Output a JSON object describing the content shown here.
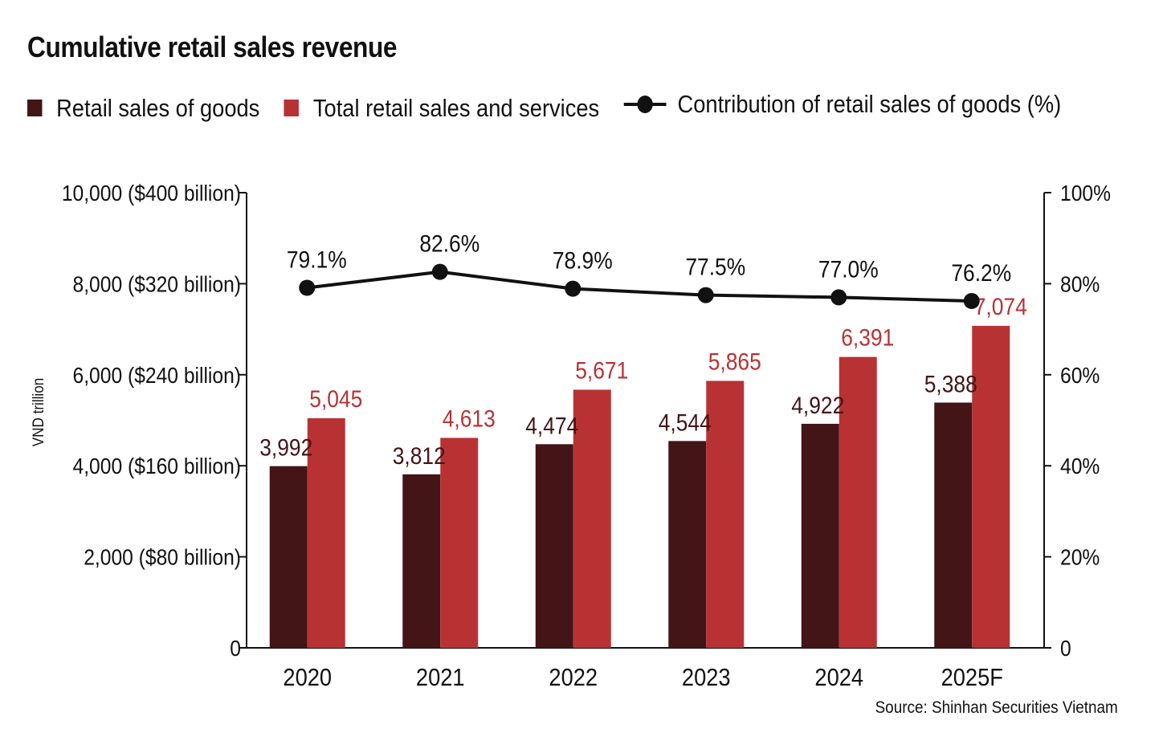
{
  "title": "Cumulative retail sales revenue",
  "source": "Source: Shinhan Securities Vietnam",
  "colors": {
    "goods": "#431516",
    "total": "#b83234",
    "line": "#111111",
    "total_label": "#b83234",
    "goods_label": "#431516"
  },
  "legend": {
    "goods": "Retail sales of goods",
    "total": "Total retail sales and services",
    "contribution": "Contribution of retail sales of goods (%)"
  },
  "chart_data": {
    "type": "bar",
    "title": "Cumulative retail sales revenue",
    "categories": [
      "2020",
      "2021",
      "2022",
      "2023",
      "2024",
      "2025F"
    ],
    "series": [
      {
        "name": "Retail sales of goods",
        "values": [
          3992,
          3812,
          4474,
          4544,
          4922,
          5388
        ],
        "labels": [
          "3,992",
          "3,812",
          "4,474",
          "4,544",
          "4,922",
          "5,388"
        ]
      },
      {
        "name": "Total retail sales and services",
        "values": [
          5045,
          4613,
          5671,
          5865,
          6391,
          7074
        ],
        "labels": [
          "5,045",
          "4,613",
          "5,671",
          "5,865",
          "6,391",
          "7,074"
        ]
      },
      {
        "name": "Contribution of retail sales of goods (%)",
        "type": "line",
        "axis": "right",
        "values": [
          79.1,
          82.6,
          78.9,
          77.5,
          77.0,
          76.2
        ],
        "labels": [
          "79.1%",
          "82.6%",
          "78.9%",
          "77.5%",
          "77.0%",
          "76.2%"
        ]
      }
    ],
    "ylabel": "VND trillion",
    "ylim": [
      0,
      10000
    ],
    "y_ticks": [
      0,
      2000,
      4000,
      6000,
      8000,
      10000
    ],
    "y_tick_labels": [
      "0",
      "2,000 ($80 billion)",
      "4,000 ($160 billion)",
      "6,000 ($240 billion)",
      "8,000 ($320 billion)",
      "10,000 ($400 billion)"
    ],
    "y2lim": [
      0,
      100
    ],
    "y2_ticks": [
      0,
      20,
      40,
      60,
      80,
      100
    ],
    "y2_tick_labels": [
      "0",
      "20%",
      "40%",
      "60%",
      "80%",
      "100%"
    ],
    "grid": false,
    "legend_position": "top"
  }
}
